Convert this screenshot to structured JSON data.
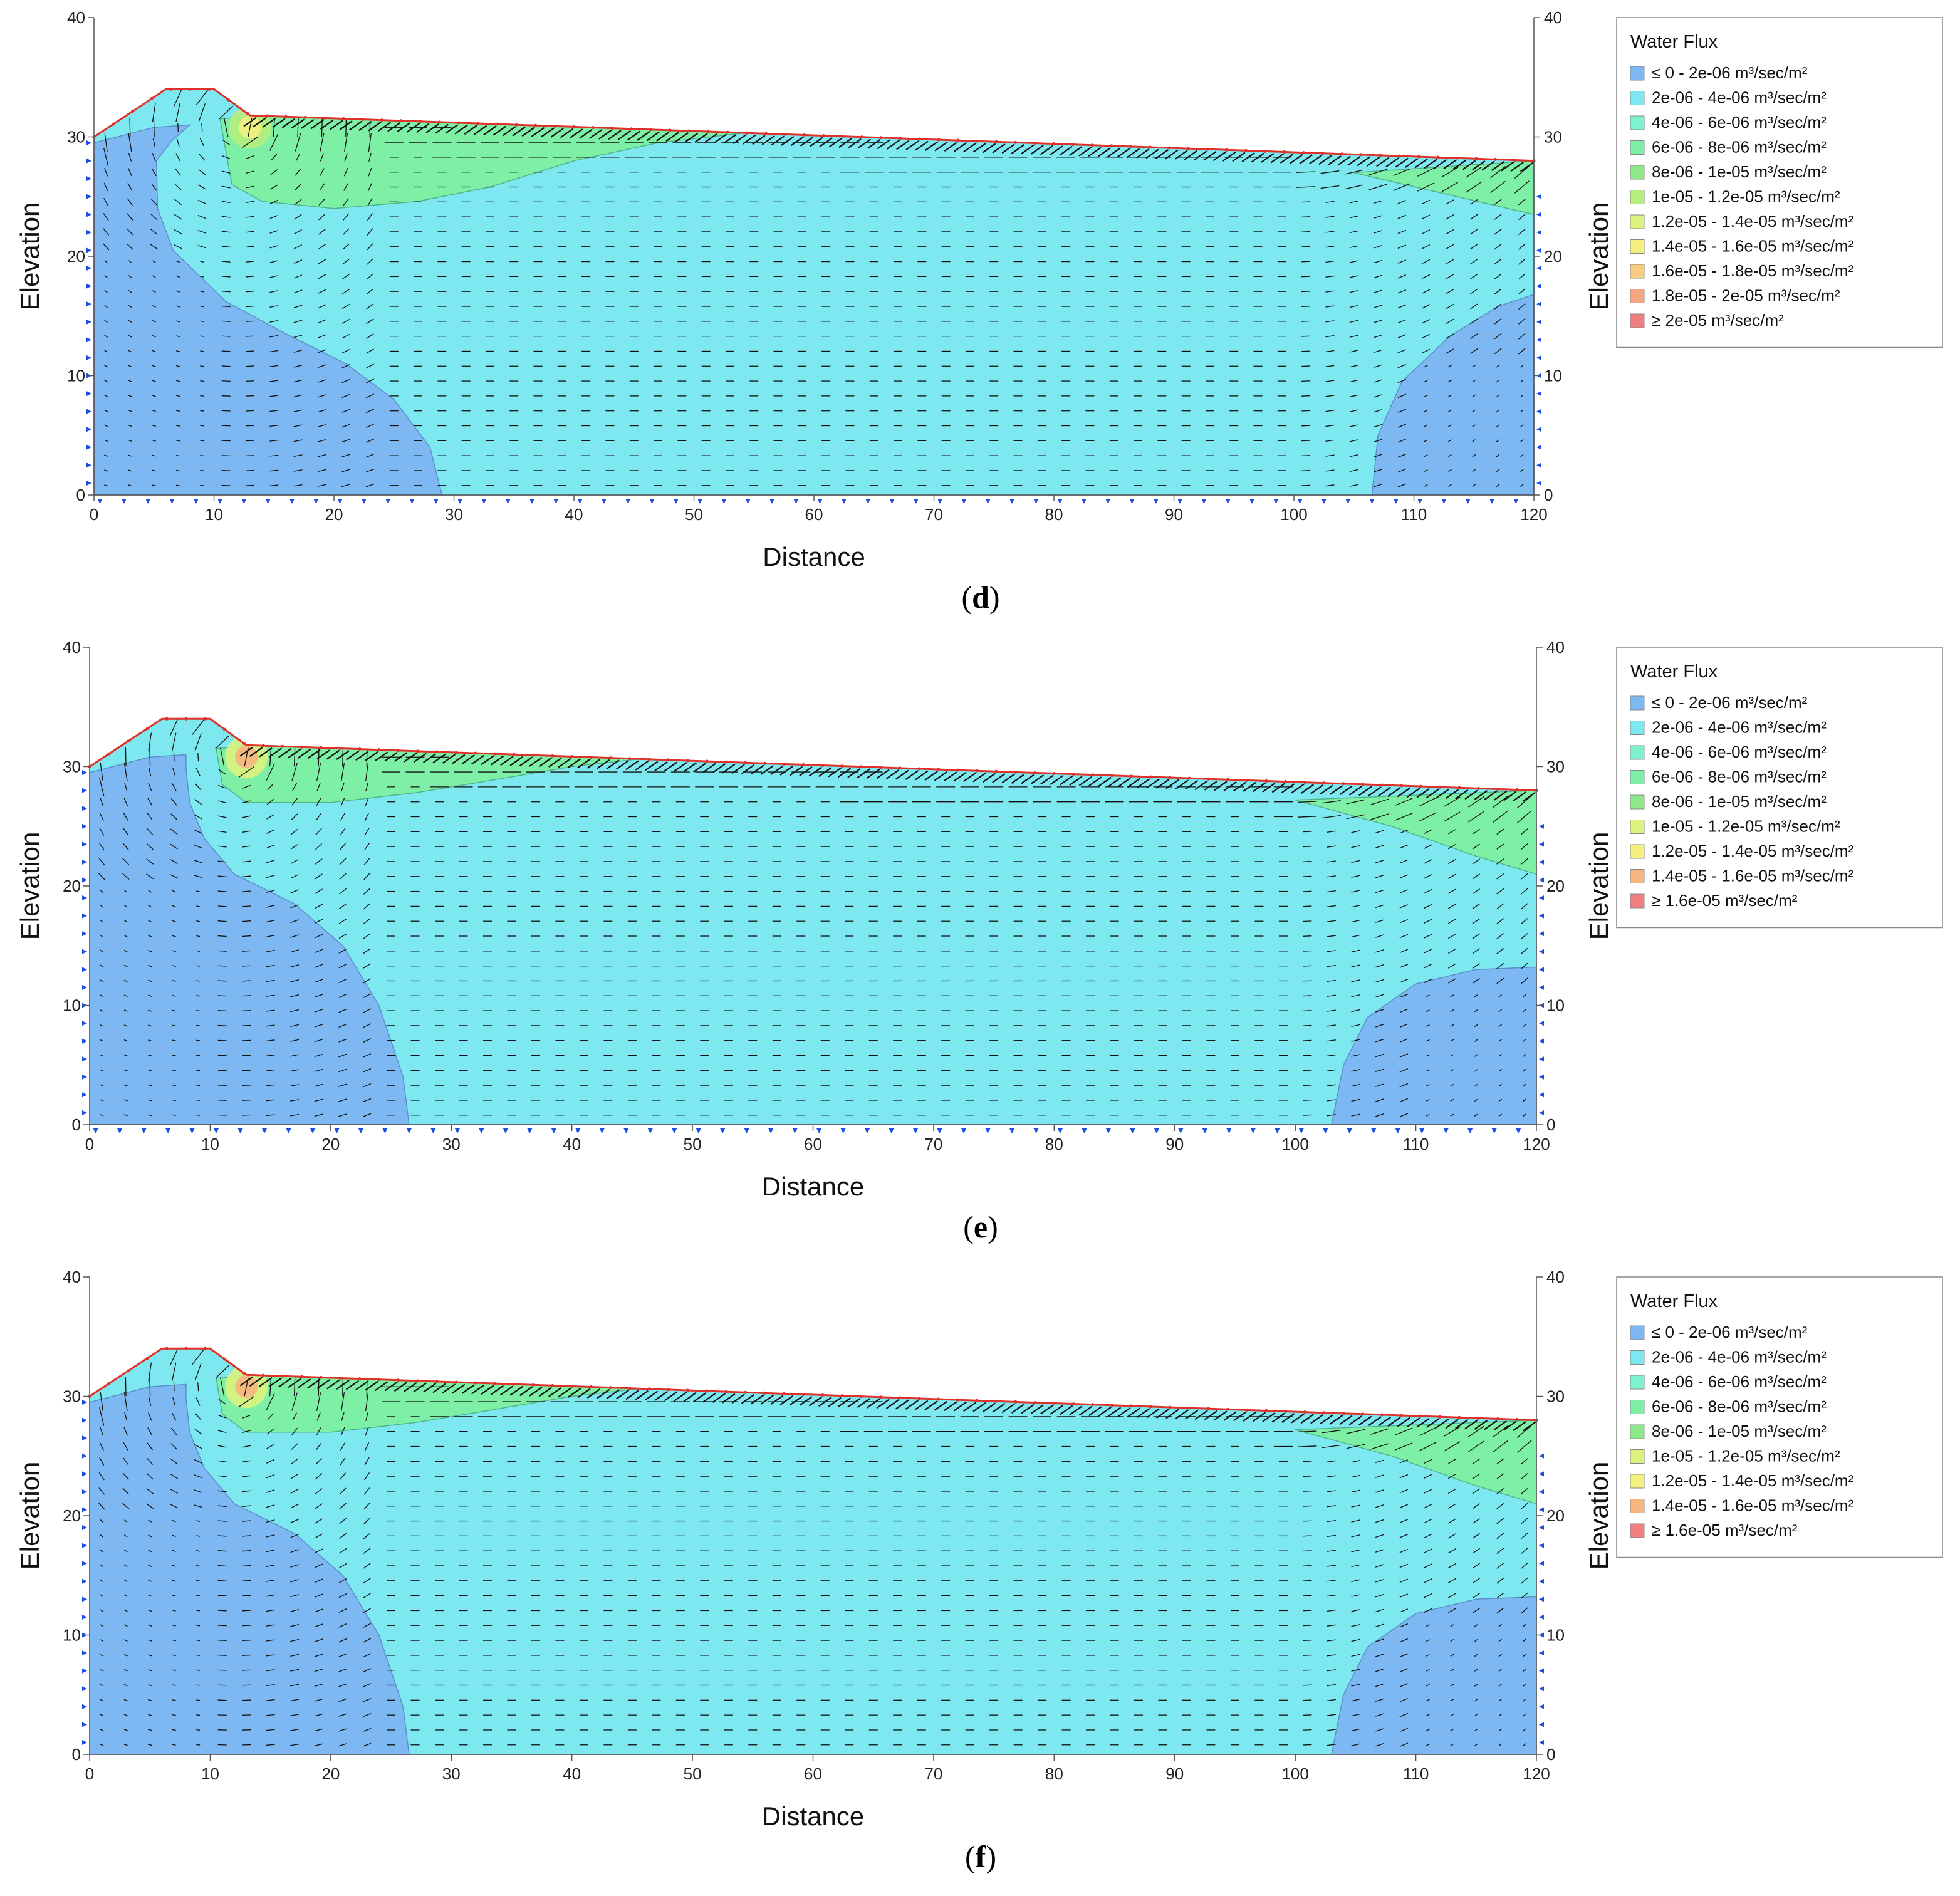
{
  "chart_data": [
    {
      "type": "contour",
      "panel_label": "d",
      "xlabel": "Distance",
      "ylabel": "Elevation",
      "xlim": [
        0,
        120
      ],
      "ylim": [
        0,
        40
      ],
      "xticks": [
        0,
        10,
        20,
        30,
        40,
        50,
        60,
        70,
        80,
        90,
        100,
        110,
        120
      ],
      "yticks": [
        0,
        10,
        20,
        30,
        40
      ],
      "legend": {
        "title": "Water Flux",
        "position": "right",
        "entries": [
          {
            "label": "≤ 0 - 2e-06 m³/sec/m²",
            "color": "#7db8f2"
          },
          {
            "label": "2e-06 - 4e-06 m³/sec/m²",
            "color": "#7ee8f0"
          },
          {
            "label": "4e-06 - 6e-06 m³/sec/m²",
            "color": "#7ef2cf"
          },
          {
            "label": "6e-06 - 8e-06 m³/sec/m²",
            "color": "#7ef0a6"
          },
          {
            "label": "8e-06 - 1e-05 m³/sec/m²",
            "color": "#8ee88a"
          },
          {
            "label": "1e-05 - 1.2e-05 m³/sec/m²",
            "color": "#b5ee7e"
          },
          {
            "label": "1.2e-05 - 1.4e-05 m³/sec/m²",
            "color": "#dcf27e"
          },
          {
            "label": "1.4e-05 - 1.6e-05 m³/sec/m²",
            "color": "#f5f07e"
          },
          {
            "label": "1.6e-05 - 1.8e-05 m³/sec/m²",
            "color": "#f7cc80"
          },
          {
            "label": "1.8e-05 - 2e-05 m³/sec/m²",
            "color": "#f5a57f"
          },
          {
            "label": "≥ 2e-05 m³/sec/m²",
            "color": "#f07f7f"
          }
        ]
      },
      "boundary": [
        [
          0,
          0
        ],
        [
          0,
          30
        ],
        [
          6,
          34
        ],
        [
          10,
          34
        ],
        [
          13,
          31.8
        ],
        [
          120,
          28
        ],
        [
          120,
          0
        ]
      ],
      "zones": {
        "left_low_flux": [
          [
            0,
            0
          ],
          [
            0,
            29.5
          ],
          [
            5,
            30.8
          ],
          [
            8,
            31
          ],
          [
            6.5,
            29.7
          ],
          [
            5.2,
            28
          ],
          [
            5.3,
            24
          ],
          [
            6.6,
            20.5
          ],
          [
            11,
            16.2
          ],
          [
            16,
            13.5
          ],
          [
            21,
            11
          ],
          [
            25,
            8
          ],
          [
            28,
            4
          ],
          [
            29,
            0
          ]
        ],
        "right_low_flux": [
          [
            106.5,
            0
          ],
          [
            107,
            5
          ],
          [
            109,
            9.5
          ],
          [
            113,
            13.3
          ],
          [
            117,
            15.8
          ],
          [
            120,
            16.8
          ],
          [
            120,
            0
          ]
        ],
        "top_left_band": [
          [
            10.5,
            31.5
          ],
          [
            11.5,
            26
          ],
          [
            14,
            24.6
          ],
          [
            20,
            24
          ],
          [
            27,
            24.6
          ],
          [
            33,
            25.8
          ],
          [
            40,
            28
          ],
          [
            47,
            29.5
          ],
          [
            60,
            31
          ],
          [
            40,
            31.5
          ],
          [
            14,
            31.8
          ]
        ],
        "top_right_band": [
          [
            105,
            27
          ],
          [
            120,
            23.5
          ],
          [
            120,
            28
          ]
        ]
      }
    },
    {
      "type": "contour",
      "panel_label": "e",
      "xlabel": "Distance",
      "ylabel": "Elevation",
      "xlim": [
        0,
        120
      ],
      "ylim": [
        0,
        40
      ],
      "xticks": [
        0,
        10,
        20,
        30,
        40,
        50,
        60,
        70,
        80,
        90,
        100,
        110,
        120
      ],
      "yticks": [
        0,
        10,
        20,
        30,
        40
      ],
      "legend": {
        "title": "Water Flux",
        "position": "right",
        "entries": [
          {
            "label": "≤ 0 - 2e-06 m³/sec/m²",
            "color": "#7db8f2"
          },
          {
            "label": "2e-06 - 4e-06 m³/sec/m²",
            "color": "#7ee8f0"
          },
          {
            "label": "4e-06 - 6e-06 m³/sec/m²",
            "color": "#7ef2cf"
          },
          {
            "label": "6e-06 - 8e-06 m³/sec/m²",
            "color": "#7ef0a6"
          },
          {
            "label": "8e-06 - 1e-05 m³/sec/m²",
            "color": "#8ee88a"
          },
          {
            "label": "1e-05 - 1.2e-05 m³/sec/m²",
            "color": "#dcf27e"
          },
          {
            "label": "1.2e-05 - 1.4e-05 m³/sec/m²",
            "color": "#f5f07e"
          },
          {
            "label": "1.4e-05 - 1.6e-05 m³/sec/m²",
            "color": "#f7b580"
          },
          {
            "label": "≥ 1.6e-05 m³/sec/m²",
            "color": "#f07f7f"
          }
        ]
      },
      "boundary": [
        [
          0,
          0
        ],
        [
          0,
          30
        ],
        [
          6,
          34
        ],
        [
          10,
          34
        ],
        [
          13,
          31.8
        ],
        [
          120,
          28
        ],
        [
          120,
          0
        ]
      ],
      "zones": {
        "left_low_flux": [
          [
            0,
            0
          ],
          [
            0,
            29.5
          ],
          [
            5,
            30.8
          ],
          [
            8,
            31
          ],
          [
            8,
            29.8
          ],
          [
            8.3,
            27
          ],
          [
            9.5,
            24
          ],
          [
            12,
            21
          ],
          [
            17,
            18.5
          ],
          [
            21,
            15
          ],
          [
            24,
            10
          ],
          [
            26,
            4
          ],
          [
            26.5,
            0
          ]
        ],
        "right_low_flux": [
          [
            103,
            0
          ],
          [
            104,
            5
          ],
          [
            106,
            9
          ],
          [
            110,
            11.8
          ],
          [
            115,
            13
          ],
          [
            120,
            13.2
          ],
          [
            120,
            0
          ]
        ],
        "top_left_band": [
          [
            10.5,
            31.5
          ],
          [
            11,
            28.5
          ],
          [
            13,
            27
          ],
          [
            20,
            27
          ],
          [
            27,
            27.8
          ],
          [
            33,
            28.8
          ],
          [
            40,
            30
          ],
          [
            47,
            30.8
          ],
          [
            40,
            31.5
          ],
          [
            14,
            31.8
          ]
        ],
        "top_right_band": [
          [
            100,
            27.2
          ],
          [
            108,
            25
          ],
          [
            115,
            22.5
          ],
          [
            120,
            21
          ],
          [
            120,
            28
          ]
        ]
      }
    },
    {
      "type": "contour",
      "panel_label": "f",
      "xlabel": "Distance",
      "ylabel": "Elevation",
      "xlim": [
        0,
        120
      ],
      "ylim": [
        0,
        40
      ],
      "xticks": [
        0,
        10,
        20,
        30,
        40,
        50,
        60,
        70,
        80,
        90,
        100,
        110,
        120
      ],
      "yticks": [
        0,
        10,
        20,
        30,
        40
      ],
      "legend": {
        "title": "Water Flux",
        "position": "right",
        "entries": [
          {
            "label": "≤ 0 - 2e-06 m³/sec/m²",
            "color": "#7db8f2"
          },
          {
            "label": "2e-06 - 4e-06 m³/sec/m²",
            "color": "#7ee8f0"
          },
          {
            "label": "4e-06 - 6e-06 m³/sec/m²",
            "color": "#7ef2cf"
          },
          {
            "label": "6e-06 - 8e-06 m³/sec/m²",
            "color": "#7ef0a6"
          },
          {
            "label": "8e-06 - 1e-05 m³/sec/m²",
            "color": "#8ee88a"
          },
          {
            "label": "1e-05 - 1.2e-05 m³/sec/m²",
            "color": "#dcf27e"
          },
          {
            "label": "1.2e-05 - 1.4e-05 m³/sec/m²",
            "color": "#f5f07e"
          },
          {
            "label": "1.4e-05 - 1.6e-05 m³/sec/m²",
            "color": "#f7b580"
          },
          {
            "label": "≥ 1.6e-05 m³/sec/m²",
            "color": "#f07f7f"
          }
        ]
      },
      "boundary": [
        [
          0,
          0
        ],
        [
          0,
          30
        ],
        [
          6,
          34
        ],
        [
          10,
          34
        ],
        [
          13,
          31.8
        ],
        [
          120,
          28
        ],
        [
          120,
          0
        ]
      ],
      "zones": {
        "left_low_flux": [
          [
            0,
            0
          ],
          [
            0,
            29.5
          ],
          [
            5,
            30.8
          ],
          [
            8,
            31
          ],
          [
            8,
            29.8
          ],
          [
            8.3,
            27
          ],
          [
            9.5,
            24
          ],
          [
            12,
            21
          ],
          [
            17,
            18.5
          ],
          [
            21,
            15
          ],
          [
            24,
            10
          ],
          [
            26,
            4
          ],
          [
            26.5,
            0
          ]
        ],
        "right_low_flux": [
          [
            103,
            0
          ],
          [
            104,
            5
          ],
          [
            106,
            9
          ],
          [
            110,
            11.8
          ],
          [
            115,
            13
          ],
          [
            120,
            13.2
          ],
          [
            120,
            0
          ]
        ],
        "top_left_band": [
          [
            10.5,
            31.5
          ],
          [
            11,
            28.5
          ],
          [
            13,
            27
          ],
          [
            20,
            27
          ],
          [
            27,
            27.8
          ],
          [
            33,
            28.8
          ],
          [
            40,
            30
          ],
          [
            47,
            30.8
          ],
          [
            40,
            31.5
          ],
          [
            14,
            31.8
          ]
        ],
        "top_right_band": [
          [
            100,
            27.2
          ],
          [
            108,
            25
          ],
          [
            115,
            22.5
          ],
          [
            120,
            21
          ],
          [
            120,
            28
          ]
        ]
      }
    }
  ],
  "colors": {
    "boundary_line": "#e0302a",
    "bc_marker": "#1a4fe0",
    "vector": "#111111",
    "axis": "#555555"
  }
}
